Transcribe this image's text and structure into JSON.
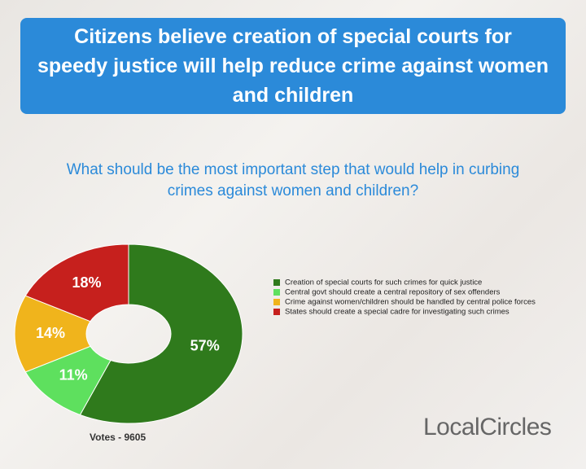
{
  "chart_data": {
    "type": "donut",
    "title": "Citizens believe creation of special courts for speedy justice will help reduce crime against women and children",
    "subtitle": "What should be the most important step that would help in curbing crimes against women and children?",
    "series": [
      {
        "name": "Creation of special courts for such crimes for quick justice",
        "color": "#2f7a1c",
        "value": 57,
        "value_label": "57%"
      },
      {
        "name": "Central govt should create a central repository of sex offenders",
        "color": "#5ee05e",
        "value": 11,
        "value_label": "11%"
      },
      {
        "name": "Crime against women/children should be handled by central police forces",
        "color": "#f0b41c",
        "value": 14,
        "value_label": "14%"
      },
      {
        "name": "States should create a special cadre for investigating such crimes",
        "color": "#c6201d",
        "value": 18,
        "value_label": "18%"
      }
    ],
    "footnote": "Votes - 9605",
    "brand": "LocalCircles"
  }
}
